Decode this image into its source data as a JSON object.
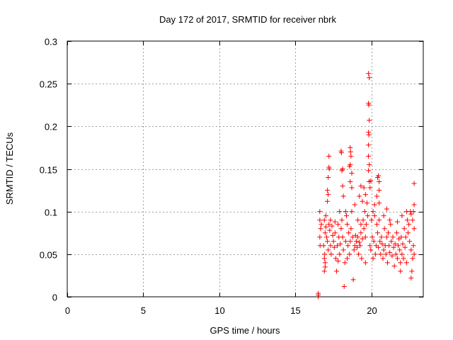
{
  "chart_data": {
    "type": "scatter",
    "title": "Day 172 of 2017, SRMTID for receiver nbrk",
    "xlabel": "GPS time / hours",
    "ylabel": "SRMTID / TECUs",
    "xlim": [
      0,
      23.4
    ],
    "ylim": [
      0,
      0.3
    ],
    "xticks": [
      0,
      5,
      10,
      15,
      20
    ],
    "yticks": [
      0,
      0.05,
      0.1,
      0.15,
      0.2,
      0.25,
      0.3
    ],
    "ytick_labels": [
      "0",
      "0.05",
      "0.1",
      "0.15",
      "0.2",
      "0.25",
      "0.3"
    ],
    "grid": true,
    "marker": "plus",
    "color": "#ff0000",
    "series": [
      {
        "name": "SRMTID",
        "points": [
          [
            16.5,
            0
          ],
          [
            16.5,
            0.002
          ],
          [
            16.5,
            0.004
          ],
          [
            19.8,
            0.262
          ],
          [
            19.85,
            0.257
          ],
          [
            19.8,
            0.227
          ],
          [
            19.82,
            0.225
          ],
          [
            19.85,
            0.207
          ],
          [
            19.8,
            0.193
          ],
          [
            19.82,
            0.19
          ],
          [
            19.8,
            0.178
          ],
          [
            19.8,
            0.165
          ],
          [
            19.85,
            0.155
          ],
          [
            19.8,
            0.148
          ],
          [
            19.85,
            0.135
          ],
          [
            19.95,
            0.136
          ],
          [
            19.9,
            0.128
          ],
          [
            17.2,
            0.165
          ],
          [
            17.2,
            0.152
          ],
          [
            17.22,
            0.15
          ],
          [
            17.15,
            0.14
          ],
          [
            17.1,
            0.125
          ],
          [
            17.15,
            0.12
          ],
          [
            17.1,
            0.112
          ],
          [
            18.0,
            0.171
          ],
          [
            18.02,
            0.169
          ],
          [
            18.1,
            0.15
          ],
          [
            18.05,
            0.148
          ],
          [
            18.1,
            0.13
          ],
          [
            18.15,
            0.118
          ],
          [
            18.6,
            0.175
          ],
          [
            18.62,
            0.17
          ],
          [
            18.65,
            0.165
          ],
          [
            18.6,
            0.155
          ],
          [
            18.55,
            0.153
          ],
          [
            18.7,
            0.145
          ],
          [
            18.6,
            0.135
          ],
          [
            18.7,
            0.128
          ],
          [
            20.4,
            0.14
          ],
          [
            20.45,
            0.142
          ],
          [
            20.5,
            0.135
          ],
          [
            20.5,
            0.125
          ],
          [
            20.35,
            0.118
          ],
          [
            20.5,
            0.11
          ],
          [
            22.8,
            0.133
          ],
          [
            22.8,
            0.108
          ],
          [
            22.75,
            0.1
          ],
          [
            22.6,
            0.097
          ],
          [
            19.3,
            0.13
          ],
          [
            19.5,
            0.128
          ],
          [
            19.6,
            0.12
          ],
          [
            19.4,
            0.112
          ],
          [
            19.2,
            0.118
          ],
          [
            16.6,
            0.1
          ],
          [
            16.6,
            0.09
          ],
          [
            16.65,
            0.08
          ],
          [
            16.6,
            0.07
          ],
          [
            16.62,
            0.06
          ],
          [
            16.7,
            0.085
          ],
          [
            16.9,
            0.03
          ],
          [
            16.95,
            0.035
          ],
          [
            16.95,
            0.04
          ],
          [
            16.9,
            0.045
          ],
          [
            16.92,
            0.05
          ],
          [
            16.85,
            0.06
          ],
          [
            16.95,
            0.075
          ],
          [
            16.9,
            0.09
          ],
          [
            17.0,
            0.082
          ],
          [
            17.05,
            0.07
          ],
          [
            17.1,
            0.065
          ],
          [
            17.15,
            0.055
          ],
          [
            17.2,
            0.085
          ],
          [
            17.25,
            0.078
          ],
          [
            17.3,
            0.06
          ],
          [
            17.35,
            0.05
          ],
          [
            17.4,
            0.083
          ],
          [
            17.45,
            0.072
          ],
          [
            17.5,
            0.065
          ],
          [
            17.55,
            0.058
          ],
          [
            17.6,
            0.075
          ],
          [
            17.65,
            0.045
          ],
          [
            17.7,
            0.03
          ],
          [
            17.75,
            0.06
          ],
          [
            17.8,
            0.085
          ],
          [
            17.85,
            0.07
          ],
          [
            17.9,
            0.05
          ],
          [
            17.95,
            0.062
          ],
          [
            18.0,
            0.08
          ],
          [
            18.05,
            0.09
          ],
          [
            18.1,
            0.07
          ],
          [
            18.15,
            0.055
          ],
          [
            18.2,
            0.012
          ],
          [
            18.25,
            0.04
          ],
          [
            18.3,
            0.065
          ],
          [
            18.35,
            0.095
          ],
          [
            18.4,
            0.085
          ],
          [
            18.45,
            0.06
          ],
          [
            18.5,
            0.075
          ],
          [
            18.55,
            0.05
          ],
          [
            18.6,
            0.065
          ],
          [
            18.65,
            0.08
          ],
          [
            18.7,
            0.1
          ],
          [
            18.75,
            0.07
          ],
          [
            18.8,
            0.02
          ],
          [
            18.85,
            0.055
          ],
          [
            18.9,
            0.06
          ],
          [
            18.95,
            0.072
          ],
          [
            19.0,
            0.065
          ],
          [
            19.05,
            0.058
          ],
          [
            19.1,
            0.07
          ],
          [
            19.15,
            0.05
          ],
          [
            19.2,
            0.064
          ],
          [
            19.25,
            0.06
          ],
          [
            19.3,
            0.075
          ],
          [
            19.35,
            0.045
          ],
          [
            19.4,
            0.068
          ],
          [
            19.45,
            0.09
          ],
          [
            19.5,
            0.08
          ],
          [
            19.55,
            0.1
          ],
          [
            19.6,
            0.07
          ],
          [
            19.65,
            0.085
          ],
          [
            19.7,
            0.11
          ],
          [
            19.75,
            0.095
          ],
          [
            19.9,
            0.06
          ],
          [
            19.95,
            0.055
          ],
          [
            20.0,
            0.09
          ],
          [
            20.05,
            0.07
          ],
          [
            20.1,
            0.1
          ],
          [
            20.15,
            0.065
          ],
          [
            20.2,
            0.095
          ],
          [
            20.25,
            0.05
          ],
          [
            20.3,
            0.06
          ],
          [
            20.35,
            0.085
          ],
          [
            20.4,
            0.075
          ],
          [
            20.45,
            0.058
          ],
          [
            20.5,
            0.09
          ],
          [
            20.55,
            0.065
          ],
          [
            20.6,
            0.05
          ],
          [
            20.65,
            0.07
          ],
          [
            20.7,
            0.062
          ],
          [
            20.75,
            0.045
          ],
          [
            20.8,
            0.055
          ],
          [
            20.85,
            0.08
          ],
          [
            20.9,
            0.06
          ],
          [
            20.95,
            0.05
          ],
          [
            21.0,
            0.07
          ],
          [
            21.05,
            0.04
          ],
          [
            21.1,
            0.075
          ],
          [
            21.15,
            0.06
          ],
          [
            21.2,
            0.052
          ],
          [
            21.25,
            0.085
          ],
          [
            21.3,
            0.065
          ],
          [
            21.35,
            0.048
          ],
          [
            21.4,
            0.07
          ],
          [
            21.45,
            0.058
          ],
          [
            21.5,
            0.036
          ],
          [
            21.55,
            0.062
          ],
          [
            21.6,
            0.05
          ],
          [
            21.65,
            0.075
          ],
          [
            21.7,
            0.045
          ],
          [
            21.75,
            0.06
          ],
          [
            21.8,
            0.068
          ],
          [
            21.85,
            0.055
          ],
          [
            21.9,
            0.04
          ],
          [
            21.95,
            0.07
          ],
          [
            22.0,
            0.05
          ],
          [
            22.05,
            0.062
          ],
          [
            22.1,
            0.045
          ],
          [
            22.15,
            0.08
          ],
          [
            22.2,
            0.058
          ],
          [
            22.25,
            0.07
          ],
          [
            22.3,
            0.04
          ],
          [
            22.35,
            0.09
          ],
          [
            22.4,
            0.075
          ],
          [
            22.45,
            0.085
          ],
          [
            22.5,
            0.065
          ],
          [
            22.55,
            0.1
          ],
          [
            22.6,
            0.022
          ],
          [
            22.65,
            0.03
          ],
          [
            22.7,
            0.045
          ],
          [
            22.75,
            0.06
          ],
          [
            22.8,
            0.08
          ],
          [
            22.7,
            0.09
          ],
          [
            22.6,
            0.055
          ],
          [
            22.8,
            0.05
          ],
          [
            17.0,
            0.095
          ],
          [
            17.3,
            0.09
          ],
          [
            17.6,
            0.088
          ],
          [
            17.9,
            0.1
          ],
          [
            18.3,
            0.1
          ],
          [
            18.9,
            0.108
          ],
          [
            19.1,
            0.09
          ],
          [
            19.3,
            0.085
          ],
          [
            20.2,
            0.108
          ],
          [
            20.8,
            0.095
          ],
          [
            21.2,
            0.09
          ],
          [
            21.7,
            0.088
          ],
          [
            22.0,
            0.095
          ],
          [
            22.3,
            0.1
          ],
          [
            21.0,
            0.103
          ],
          [
            20.1,
            0.045
          ],
          [
            19.6,
            0.04
          ],
          [
            18.4,
            0.045
          ],
          [
            17.8,
            0.042
          ],
          [
            21.9,
            0.03
          ]
        ]
      }
    ]
  }
}
